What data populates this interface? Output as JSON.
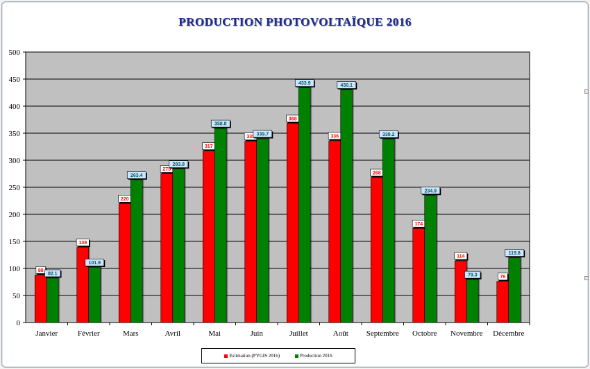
{
  "colors": {
    "plot_background": "#c0c0c0",
    "estimation": "#ff0000",
    "production": "#008000",
    "title": "#1f2a8a",
    "label_fill_estimation": "#ffffff",
    "label_fill_production": "#cce6ff"
  },
  "chart_data": {
    "type": "bar",
    "title": "PRODUCTION PHOTOVOLTAÏQUE 2016",
    "xlabel": "",
    "ylabel": "",
    "ylim": [
      0,
      500
    ],
    "yticks": [
      0,
      50,
      100,
      150,
      200,
      250,
      300,
      350,
      400,
      450,
      500
    ],
    "grid": true,
    "legend_position": "bottom",
    "categories": [
      "Janvier",
      "Février",
      "Mars",
      "Avril",
      "Mai",
      "Juin",
      "Juillet",
      "Août",
      "Septembre",
      "Octobre",
      "Novembre",
      "Décembre"
    ],
    "series": [
      {
        "name": "Estimation (PVGIS 2016)",
        "values": [
          88,
          139,
          220,
          275,
          317,
          335,
          368,
          336,
          268,
          174,
          114,
          76
        ],
        "labels": [
          "88",
          "139",
          "220",
          "275",
          "317",
          "335",
          "368",
          "336",
          "268",
          "174",
          "114",
          "76"
        ]
      },
      {
        "name": "Production 2016",
        "values": [
          82.1,
          101.9,
          263.4,
          283.8,
          358.8,
          339.7,
          433.9,
          430.1,
          339.2,
          234.9,
          79.3,
          119.8
        ],
        "labels": [
          "82.1",
          "101.9",
          "263.4",
          "283.8",
          "358.8",
          "339.7",
          "433.9",
          "430.1",
          "339.2",
          "234.9",
          "79.3",
          "119.8"
        ]
      }
    ]
  }
}
